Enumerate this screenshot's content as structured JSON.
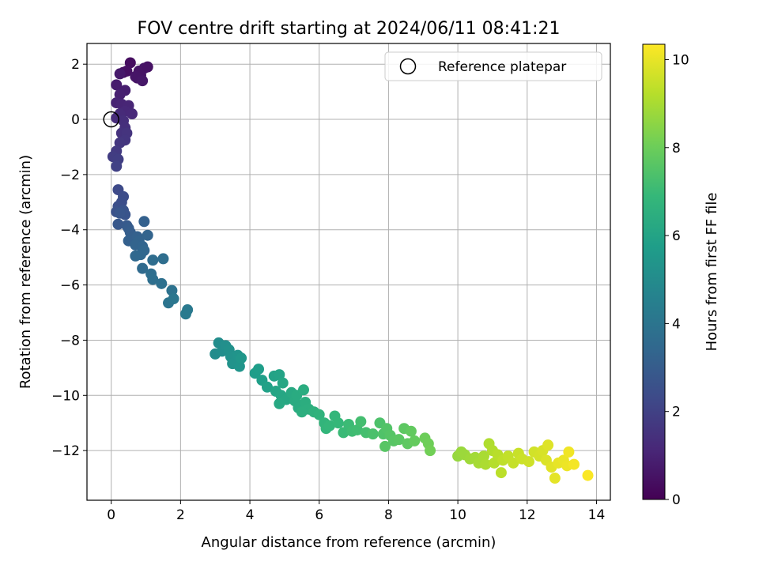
{
  "chart_data": {
    "type": "scatter",
    "title": "FOV centre drift starting at 2024/06/11 08:41:21",
    "xlabel": "Angular distance from reference (arcmin)",
    "ylabel": "Rotation from reference (arcmin)",
    "xlim": [
      -0.7,
      14.4
    ],
    "ylim": [
      -13.8,
      2.75
    ],
    "xticks": [
      0,
      2,
      4,
      6,
      8,
      10,
      12,
      14
    ],
    "yticks": [
      2,
      0,
      -2,
      -4,
      -6,
      -8,
      -10,
      -12
    ],
    "xtick_labels": [
      "0",
      "2",
      "4",
      "6",
      "8",
      "10",
      "12",
      "14"
    ],
    "ytick_labels": [
      "2",
      "0",
      "−2",
      "−4",
      "−6",
      "−8",
      "−10",
      "−12"
    ],
    "grid": true,
    "colormap": "viridis",
    "colorbar": {
      "label": "Hours from first FF file",
      "range": [
        0,
        10.35
      ],
      "ticks": [
        0,
        2,
        4,
        6,
        8,
        10
      ],
      "tick_labels": [
        "0",
        "2",
        "4",
        "6",
        "8",
        "10"
      ]
    },
    "legend": {
      "position": "top-right",
      "entries": [
        {
          "label": "Reference platepar",
          "marker": "open-circle"
        }
      ]
    },
    "reference_point": {
      "x": 0,
      "y": 0
    },
    "points": [
      {
        "x": 0.55,
        "y": 2.05,
        "c": 0.35
      },
      {
        "x": 0.35,
        "y": 1.7,
        "c": 0.4
      },
      {
        "x": 0.45,
        "y": 1.75,
        "c": 0.45
      },
      {
        "x": 0.75,
        "y": 1.5,
        "c": 0.5
      },
      {
        "x": 0.85,
        "y": 1.6,
        "c": 0.55
      },
      {
        "x": 0.95,
        "y": 1.85,
        "c": 0.6
      },
      {
        "x": 0.8,
        "y": 1.75,
        "c": 0.55
      },
      {
        "x": 0.7,
        "y": 1.55,
        "c": 0.6
      },
      {
        "x": 1.05,
        "y": 1.9,
        "c": 0.5
      },
      {
        "x": 0.9,
        "y": 1.4,
        "c": 0.65
      },
      {
        "x": 0.25,
        "y": 1.65,
        "c": 0.7
      },
      {
        "x": 0.15,
        "y": 1.25,
        "c": 0.8
      },
      {
        "x": 0.4,
        "y": 1.05,
        "c": 0.85
      },
      {
        "x": 0.25,
        "y": 0.9,
        "c": 0.9
      },
      {
        "x": 0.15,
        "y": 0.6,
        "c": 1.0
      },
      {
        "x": 0.3,
        "y": 0.55,
        "c": 1.05
      },
      {
        "x": 0.5,
        "y": 0.5,
        "c": 1.1
      },
      {
        "x": 0.4,
        "y": 0.3,
        "c": 1.15
      },
      {
        "x": 0.6,
        "y": 0.2,
        "c": 1.2
      },
      {
        "x": 0.25,
        "y": 0.2,
        "c": 1.25
      },
      {
        "x": 0.15,
        "y": 0.05,
        "c": 1.3
      },
      {
        "x": 0.35,
        "y": -0.05,
        "c": 1.35
      },
      {
        "x": 0.4,
        "y": -0.3,
        "c": 1.4
      },
      {
        "x": 0.3,
        "y": -0.5,
        "c": 1.5
      },
      {
        "x": 0.45,
        "y": -0.5,
        "c": 1.55
      },
      {
        "x": 0.4,
        "y": -0.75,
        "c": 1.6
      },
      {
        "x": 0.25,
        "y": -0.85,
        "c": 1.65
      },
      {
        "x": 0.15,
        "y": -1.15,
        "c": 1.75
      },
      {
        "x": 0.05,
        "y": -1.35,
        "c": 1.85
      },
      {
        "x": 0.2,
        "y": -1.45,
        "c": 1.9
      },
      {
        "x": 0.15,
        "y": -1.7,
        "c": 2.0
      },
      {
        "x": 0.2,
        "y": -2.55,
        "c": 2.3
      },
      {
        "x": 0.35,
        "y": -2.8,
        "c": 2.4
      },
      {
        "x": 0.3,
        "y": -3.0,
        "c": 2.45
      },
      {
        "x": 0.2,
        "y": -3.15,
        "c": 2.5
      },
      {
        "x": 0.15,
        "y": -3.35,
        "c": 2.6
      },
      {
        "x": 0.35,
        "y": -3.3,
        "c": 2.65
      },
      {
        "x": 0.4,
        "y": -3.45,
        "c": 2.7
      },
      {
        "x": 0.25,
        "y": -3.4,
        "c": 2.75
      },
      {
        "x": 0.2,
        "y": -3.8,
        "c": 2.85
      },
      {
        "x": 0.45,
        "y": -3.85,
        "c": 2.9
      },
      {
        "x": 0.5,
        "y": -3.95,
        "c": 3.0
      },
      {
        "x": 0.55,
        "y": -4.1,
        "c": 3.05
      },
      {
        "x": 0.6,
        "y": -4.3,
        "c": 3.1
      },
      {
        "x": 0.5,
        "y": -4.4,
        "c": 3.15
      },
      {
        "x": 0.75,
        "y": -4.25,
        "c": 3.2
      },
      {
        "x": 0.8,
        "y": -4.4,
        "c": 3.25
      },
      {
        "x": 0.7,
        "y": -4.55,
        "c": 3.3
      },
      {
        "x": 0.9,
        "y": -4.6,
        "c": 3.35
      },
      {
        "x": 0.95,
        "y": -4.75,
        "c": 3.4
      },
      {
        "x": 0.85,
        "y": -4.9,
        "c": 3.45
      },
      {
        "x": 0.7,
        "y": -4.95,
        "c": 3.5
      },
      {
        "x": 1.05,
        "y": -4.2,
        "c": 3.3
      },
      {
        "x": 0.95,
        "y": -3.7,
        "c": 3.2
      },
      {
        "x": 0.9,
        "y": -5.4,
        "c": 3.6
      },
      {
        "x": 1.2,
        "y": -5.1,
        "c": 3.65
      },
      {
        "x": 1.15,
        "y": -5.6,
        "c": 3.7
      },
      {
        "x": 1.2,
        "y": -5.8,
        "c": 3.75
      },
      {
        "x": 1.5,
        "y": -5.05,
        "c": 3.7
      },
      {
        "x": 1.45,
        "y": -5.95,
        "c": 3.8
      },
      {
        "x": 1.75,
        "y": -6.2,
        "c": 3.9
      },
      {
        "x": 1.65,
        "y": -6.65,
        "c": 4.0
      },
      {
        "x": 1.8,
        "y": -6.5,
        "c": 4.05
      },
      {
        "x": 2.2,
        "y": -6.9,
        "c": 4.2
      },
      {
        "x": 2.15,
        "y": -7.05,
        "c": 4.25
      },
      {
        "x": 3.0,
        "y": -8.5,
        "c": 5.0
      },
      {
        "x": 3.1,
        "y": -8.1,
        "c": 5.05
      },
      {
        "x": 3.2,
        "y": -8.4,
        "c": 5.1
      },
      {
        "x": 3.3,
        "y": -8.2,
        "c": 5.15
      },
      {
        "x": 3.4,
        "y": -8.35,
        "c": 5.2
      },
      {
        "x": 3.45,
        "y": -8.6,
        "c": 5.25
      },
      {
        "x": 3.5,
        "y": -8.85,
        "c": 5.3
      },
      {
        "x": 3.65,
        "y": -8.55,
        "c": 5.35
      },
      {
        "x": 3.7,
        "y": -8.95,
        "c": 5.4
      },
      {
        "x": 3.75,
        "y": -8.65,
        "c": 5.45
      },
      {
        "x": 4.15,
        "y": -9.2,
        "c": 5.7
      },
      {
        "x": 4.25,
        "y": -9.05,
        "c": 5.75
      },
      {
        "x": 4.35,
        "y": -9.45,
        "c": 5.8
      },
      {
        "x": 4.5,
        "y": -9.7,
        "c": 5.9
      },
      {
        "x": 4.7,
        "y": -9.3,
        "c": 5.95
      },
      {
        "x": 4.85,
        "y": -9.25,
        "c": 6.0
      },
      {
        "x": 4.75,
        "y": -9.85,
        "c": 6.05
      },
      {
        "x": 4.9,
        "y": -10.0,
        "c": 6.1
      },
      {
        "x": 4.95,
        "y": -9.55,
        "c": 6.1
      },
      {
        "x": 5.05,
        "y": -10.15,
        "c": 6.15
      },
      {
        "x": 4.85,
        "y": -10.3,
        "c": 6.2
      },
      {
        "x": 5.2,
        "y": -9.9,
        "c": 6.25
      },
      {
        "x": 5.3,
        "y": -10.2,
        "c": 6.3
      },
      {
        "x": 5.4,
        "y": -10.45,
        "c": 6.35
      },
      {
        "x": 5.35,
        "y": -10.0,
        "c": 6.35
      },
      {
        "x": 5.55,
        "y": -9.8,
        "c": 6.4
      },
      {
        "x": 5.6,
        "y": -10.25,
        "c": 6.45
      },
      {
        "x": 5.7,
        "y": -10.5,
        "c": 6.5
      },
      {
        "x": 5.5,
        "y": -10.6,
        "c": 6.5
      },
      {
        "x": 5.85,
        "y": -10.6,
        "c": 6.6
      },
      {
        "x": 6.0,
        "y": -10.7,
        "c": 6.65
      },
      {
        "x": 6.15,
        "y": -11.0,
        "c": 6.75
      },
      {
        "x": 6.2,
        "y": -11.2,
        "c": 6.8
      },
      {
        "x": 6.3,
        "y": -11.1,
        "c": 6.85
      },
      {
        "x": 6.45,
        "y": -10.75,
        "c": 6.85
      },
      {
        "x": 6.55,
        "y": -11.0,
        "c": 6.9
      },
      {
        "x": 6.7,
        "y": -11.35,
        "c": 7.0
      },
      {
        "x": 6.85,
        "y": -11.05,
        "c": 7.05
      },
      {
        "x": 6.95,
        "y": -11.3,
        "c": 7.1
      },
      {
        "x": 7.1,
        "y": -11.25,
        "c": 7.15
      },
      {
        "x": 7.2,
        "y": -10.95,
        "c": 7.2
      },
      {
        "x": 7.35,
        "y": -11.35,
        "c": 7.25
      },
      {
        "x": 7.55,
        "y": -11.4,
        "c": 7.35
      },
      {
        "x": 7.75,
        "y": -11.0,
        "c": 7.4
      },
      {
        "x": 7.85,
        "y": -11.4,
        "c": 7.45
      },
      {
        "x": 7.95,
        "y": -11.2,
        "c": 7.5
      },
      {
        "x": 8.05,
        "y": -11.45,
        "c": 7.55
      },
      {
        "x": 8.15,
        "y": -11.65,
        "c": 7.6
      },
      {
        "x": 7.9,
        "y": -11.85,
        "c": 7.6
      },
      {
        "x": 8.3,
        "y": -11.6,
        "c": 7.65
      },
      {
        "x": 8.45,
        "y": -11.2,
        "c": 7.7
      },
      {
        "x": 8.55,
        "y": -11.75,
        "c": 7.75
      },
      {
        "x": 8.65,
        "y": -11.3,
        "c": 7.8
      },
      {
        "x": 8.75,
        "y": -11.65,
        "c": 7.85
      },
      {
        "x": 9.05,
        "y": -11.55,
        "c": 8.0
      },
      {
        "x": 9.15,
        "y": -11.75,
        "c": 8.05
      },
      {
        "x": 9.2,
        "y": -12.0,
        "c": 8.1
      },
      {
        "x": 10.0,
        "y": -12.2,
        "c": 8.7
      },
      {
        "x": 10.1,
        "y": -12.05,
        "c": 8.75
      },
      {
        "x": 10.2,
        "y": -12.15,
        "c": 8.8
      },
      {
        "x": 10.35,
        "y": -12.3,
        "c": 8.85
      },
      {
        "x": 10.5,
        "y": -12.25,
        "c": 8.9
      },
      {
        "x": 10.6,
        "y": -12.45,
        "c": 8.95
      },
      {
        "x": 10.75,
        "y": -12.2,
        "c": 9.0
      },
      {
        "x": 10.8,
        "y": -12.5,
        "c": 9.05
      },
      {
        "x": 10.9,
        "y": -11.75,
        "c": 9.1
      },
      {
        "x": 11.0,
        "y": -12.0,
        "c": 9.15
      },
      {
        "x": 11.05,
        "y": -12.45,
        "c": 9.2
      },
      {
        "x": 11.15,
        "y": -12.15,
        "c": 9.25
      },
      {
        "x": 11.25,
        "y": -12.8,
        "c": 9.3
      },
      {
        "x": 11.3,
        "y": -12.35,
        "c": 9.35
      },
      {
        "x": 11.45,
        "y": -12.2,
        "c": 9.4
      },
      {
        "x": 11.6,
        "y": -12.45,
        "c": 9.45
      },
      {
        "x": 11.75,
        "y": -12.1,
        "c": 9.5
      },
      {
        "x": 11.85,
        "y": -12.3,
        "c": 9.55
      },
      {
        "x": 12.05,
        "y": -12.4,
        "c": 9.6
      },
      {
        "x": 12.2,
        "y": -12.05,
        "c": 9.65
      },
      {
        "x": 12.35,
        "y": -12.2,
        "c": 9.7
      },
      {
        "x": 12.45,
        "y": -12.0,
        "c": 9.75
      },
      {
        "x": 12.55,
        "y": -12.35,
        "c": 9.8
      },
      {
        "x": 12.6,
        "y": -11.8,
        "c": 9.85
      },
      {
        "x": 12.7,
        "y": -12.6,
        "c": 9.9
      },
      {
        "x": 12.8,
        "y": -13.0,
        "c": 9.95
      },
      {
        "x": 12.9,
        "y": -12.45,
        "c": 10.0
      },
      {
        "x": 13.05,
        "y": -12.35,
        "c": 10.05
      },
      {
        "x": 13.15,
        "y": -12.55,
        "c": 10.1
      },
      {
        "x": 13.2,
        "y": -12.05,
        "c": 10.15
      },
      {
        "x": 13.35,
        "y": -12.5,
        "c": 10.2
      },
      {
        "x": 13.75,
        "y": -12.9,
        "c": 10.3
      }
    ]
  }
}
